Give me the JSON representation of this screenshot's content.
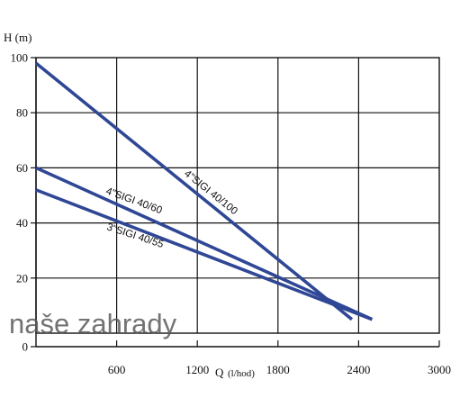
{
  "chart_data": {
    "type": "line",
    "xlabel": "Q",
    "xunit": "(l/hod)",
    "ylabel": "H (m)",
    "xlim": [
      0,
      3000
    ],
    "ylim": [
      0,
      100
    ],
    "grid": true,
    "x_tick_labels": [
      "600",
      "1200",
      "1800",
      "2400",
      "3000"
    ],
    "y_tick_labels": [
      "0",
      "20",
      "40",
      "60",
      "80",
      "100"
    ],
    "series": [
      {
        "name": "4\"SIGI 40/100",
        "x": [
          0,
          2350
        ],
        "y": [
          98,
          5
        ]
      },
      {
        "name": "4\"SIGI 40/60",
        "x": [
          0,
          2500
        ],
        "y": [
          60,
          5
        ]
      },
      {
        "name": "3\"SIGI 40/55",
        "x": [
          0,
          2500
        ],
        "y": [
          52,
          5
        ]
      }
    ],
    "series_color": "#2f4795",
    "watermark": "naše zahrady"
  }
}
